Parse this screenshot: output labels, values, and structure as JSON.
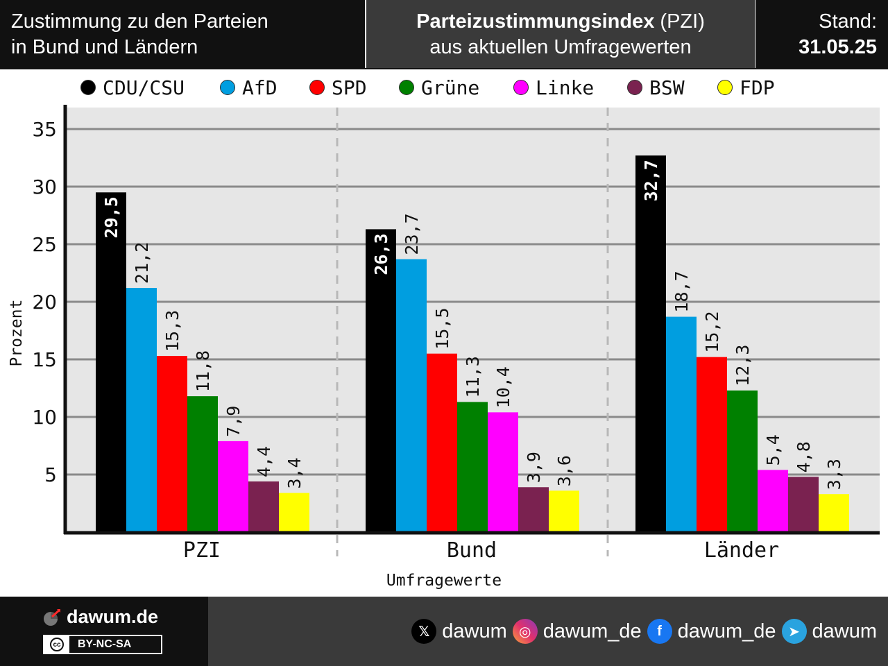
{
  "header": {
    "left_line1": "Zustimmung zu den Parteien",
    "left_line2": "in Bund und Ländern",
    "mid_title_bold": "Parteizustimmungsindex",
    "mid_title_rest": " (PZI)",
    "mid_line2": "aus aktuellen Umfragewerten",
    "stand_label": "Stand:",
    "stand_date": "31.05.25"
  },
  "legend": [
    {
      "label": "CDU/CSU",
      "color": "#000000"
    },
    {
      "label": "AfD",
      "color": "#009ee0"
    },
    {
      "label": "SPD",
      "color": "#ff0000"
    },
    {
      "label": "Grüne",
      "color": "#008000"
    },
    {
      "label": "Linke",
      "color": "#ff00ff"
    },
    {
      "label": "BSW",
      "color": "#7a2250"
    },
    {
      "label": "FDP",
      "color": "#ffff00"
    }
  ],
  "chart_data": {
    "type": "bar",
    "title": "",
    "xlabel": "Umfragewerte",
    "ylabel": "Prozent",
    "ylim": [
      0,
      37
    ],
    "yticks": [
      5,
      10,
      15,
      20,
      25,
      30,
      35
    ],
    "grid": true,
    "legend_position": "top",
    "categories": [
      "PZI",
      "Bund",
      "Länder"
    ],
    "series": [
      {
        "name": "CDU/CSU",
        "color": "#000000",
        "values": [
          29.5,
          26.3,
          32.7
        ],
        "labels": [
          "29,5",
          "26,3",
          "32,7"
        ]
      },
      {
        "name": "AfD",
        "color": "#009ee0",
        "values": [
          21.2,
          23.7,
          18.7
        ],
        "labels": [
          "21,2",
          "23,7",
          "18,7"
        ]
      },
      {
        "name": "SPD",
        "color": "#ff0000",
        "values": [
          15.3,
          15.5,
          15.2
        ],
        "labels": [
          "15,3",
          "15,5",
          "15,2"
        ]
      },
      {
        "name": "Grüne",
        "color": "#008000",
        "values": [
          11.8,
          11.3,
          12.3
        ],
        "labels": [
          "11,8",
          "11,3",
          "12,3"
        ]
      },
      {
        "name": "Linke",
        "color": "#ff00ff",
        "values": [
          7.9,
          10.4,
          5.4
        ],
        "labels": [
          "7,9",
          "10,4",
          "5,4"
        ]
      },
      {
        "name": "BSW",
        "color": "#7a2250",
        "values": [
          4.4,
          3.9,
          4.8
        ],
        "labels": [
          "4,4",
          "3,9",
          "4,8"
        ]
      },
      {
        "name": "FDP",
        "color": "#ffff00",
        "values": [
          3.4,
          3.6,
          3.3
        ],
        "labels": [
          "3,4",
          "3,6",
          "3,3"
        ]
      }
    ]
  },
  "footer": {
    "brand": "dawum.de",
    "license": "BY-NC-SA",
    "license_badge": "cc",
    "socials": [
      {
        "icon": "x-icon",
        "glyph": "𝕏",
        "label": "dawum",
        "color": "#000000"
      },
      {
        "icon": "instagram-icon",
        "glyph": "◎",
        "label": "dawum_de",
        "color": "#e1306c"
      },
      {
        "icon": "facebook-icon",
        "glyph": "f",
        "label": "dawum_de",
        "color": "#1877f2"
      },
      {
        "icon": "telegram-icon",
        "glyph": "➤",
        "label": "dawum",
        "color": "#2aa3df"
      }
    ]
  }
}
